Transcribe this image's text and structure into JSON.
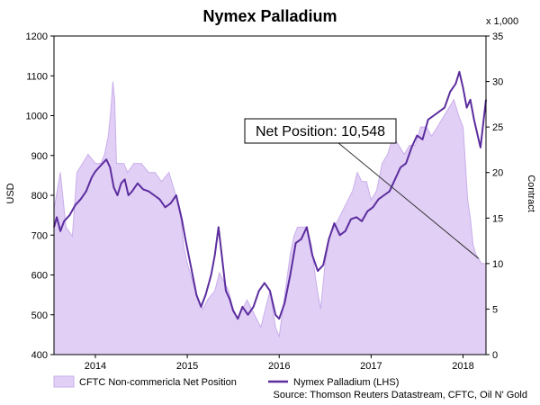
{
  "chart_data": {
    "type": "area",
    "title": "Nymex Palladium",
    "ylabel": "USD",
    "y2label": "Contract",
    "y2unit": "x 1,000",
    "ylim": [
      400,
      1200
    ],
    "y2lim": [
      0,
      35
    ],
    "yticks": [
      400,
      500,
      600,
      700,
      800,
      900,
      1000,
      1100,
      1200
    ],
    "y2ticks": [
      0,
      5,
      10,
      15,
      20,
      25,
      30,
      35
    ],
    "xlim": [
      2013.55,
      2018.25
    ],
    "xticks": [
      {
        "label": "2014",
        "value": 2014.0
      },
      {
        "label": "2015",
        "value": 2015.0
      },
      {
        "label": "2016",
        "value": 2016.0
      },
      {
        "label": "2017",
        "value": 2017.0
      },
      {
        "label": "2018",
        "value": 2018.0
      }
    ],
    "grid": false,
    "legend_position": "bottom",
    "series": [
      {
        "name": "CFTC Non-commericla Net Position",
        "axis": "right",
        "kind": "area",
        "points": [
          [
            2013.55,
            16
          ],
          [
            2013.62,
            20
          ],
          [
            2013.68,
            14
          ],
          [
            2013.75,
            13
          ],
          [
            2013.8,
            20
          ],
          [
            2013.86,
            21
          ],
          [
            2013.92,
            22
          ],
          [
            2014.0,
            21
          ],
          [
            2014.06,
            21
          ],
          [
            2014.1,
            22
          ],
          [
            2014.14,
            24
          ],
          [
            2014.17,
            27
          ],
          [
            2014.19,
            30
          ],
          [
            2014.21,
            28
          ],
          [
            2014.23,
            21
          ],
          [
            2014.27,
            21
          ],
          [
            2014.31,
            21
          ],
          [
            2014.35,
            20
          ],
          [
            2014.42,
            21
          ],
          [
            2014.5,
            21
          ],
          [
            2014.58,
            20
          ],
          [
            2014.65,
            20
          ],
          [
            2014.72,
            19
          ],
          [
            2014.8,
            20
          ],
          [
            2014.86,
            18
          ],
          [
            2014.92,
            16
          ],
          [
            2014.96,
            12
          ],
          [
            2015.0,
            10
          ],
          [
            2015.06,
            8
          ],
          [
            2015.12,
            6
          ],
          [
            2015.17,
            5
          ],
          [
            2015.22,
            6
          ],
          [
            2015.3,
            7
          ],
          [
            2015.35,
            9
          ],
          [
            2015.4,
            8
          ],
          [
            2015.45,
            7
          ],
          [
            2015.5,
            5
          ],
          [
            2015.55,
            4
          ],
          [
            2015.6,
            5
          ],
          [
            2015.65,
            6
          ],
          [
            2015.7,
            5
          ],
          [
            2015.75,
            4
          ],
          [
            2015.8,
            3
          ],
          [
            2015.85,
            5
          ],
          [
            2015.9,
            7
          ],
          [
            2015.96,
            3
          ],
          [
            2016.0,
            2
          ],
          [
            2016.04,
            5
          ],
          [
            2016.08,
            8
          ],
          [
            2016.12,
            11
          ],
          [
            2016.16,
            13
          ],
          [
            2016.2,
            14
          ],
          [
            2016.25,
            14
          ],
          [
            2016.3,
            14
          ],
          [
            2016.35,
            12
          ],
          [
            2016.4,
            8
          ],
          [
            2016.45,
            5
          ],
          [
            2016.5,
            10
          ],
          [
            2016.55,
            13
          ],
          [
            2016.6,
            14
          ],
          [
            2016.65,
            15
          ],
          [
            2016.7,
            16
          ],
          [
            2016.75,
            17
          ],
          [
            2016.8,
            18
          ],
          [
            2016.85,
            20
          ],
          [
            2016.9,
            19
          ],
          [
            2016.95,
            19
          ],
          [
            2017.0,
            17
          ],
          [
            2017.06,
            18
          ],
          [
            2017.12,
            21
          ],
          [
            2017.18,
            22
          ],
          [
            2017.24,
            24
          ],
          [
            2017.3,
            23
          ],
          [
            2017.36,
            22
          ],
          [
            2017.42,
            23
          ],
          [
            2017.48,
            23
          ],
          [
            2017.54,
            25
          ],
          [
            2017.6,
            25
          ],
          [
            2017.66,
            24
          ],
          [
            2017.72,
            25
          ],
          [
            2017.78,
            26
          ],
          [
            2017.84,
            27
          ],
          [
            2017.9,
            28
          ],
          [
            2017.96,
            26
          ],
          [
            2018.0,
            25
          ],
          [
            2018.02,
            22
          ],
          [
            2018.05,
            17
          ],
          [
            2018.08,
            15
          ],
          [
            2018.11,
            12
          ],
          [
            2018.14,
            11
          ],
          [
            2018.17,
            10.548
          ],
          [
            2018.2,
            10
          ],
          [
            2018.23,
            10
          ],
          [
            2018.25,
            10
          ]
        ]
      },
      {
        "name": "Nymex Palladium (LHS)",
        "axis": "left",
        "kind": "line",
        "points": [
          [
            2013.55,
            720
          ],
          [
            2013.58,
            745
          ],
          [
            2013.62,
            710
          ],
          [
            2013.66,
            735
          ],
          [
            2013.72,
            750
          ],
          [
            2013.78,
            775
          ],
          [
            2013.84,
            790
          ],
          [
            2013.9,
            810
          ],
          [
            2013.96,
            845
          ],
          [
            2014.0,
            860
          ],
          [
            2014.04,
            870
          ],
          [
            2014.08,
            880
          ],
          [
            2014.12,
            890
          ],
          [
            2014.16,
            870
          ],
          [
            2014.2,
            820
          ],
          [
            2014.24,
            800
          ],
          [
            2014.28,
            830
          ],
          [
            2014.32,
            840
          ],
          [
            2014.36,
            800
          ],
          [
            2014.4,
            810
          ],
          [
            2014.46,
            830
          ],
          [
            2014.52,
            815
          ],
          [
            2014.58,
            810
          ],
          [
            2014.64,
            800
          ],
          [
            2014.7,
            790
          ],
          [
            2014.76,
            770
          ],
          [
            2014.82,
            780
          ],
          [
            2014.88,
            800
          ],
          [
            2014.94,
            740
          ],
          [
            2014.98,
            690
          ],
          [
            2015.04,
            620
          ],
          [
            2015.1,
            550
          ],
          [
            2015.15,
            520
          ],
          [
            2015.2,
            550
          ],
          [
            2015.26,
            600
          ],
          [
            2015.3,
            650
          ],
          [
            2015.34,
            720
          ],
          [
            2015.38,
            640
          ],
          [
            2015.42,
            560
          ],
          [
            2015.46,
            540
          ],
          [
            2015.5,
            510
          ],
          [
            2015.55,
            490
          ],
          [
            2015.6,
            520
          ],
          [
            2015.66,
            500
          ],
          [
            2015.72,
            520
          ],
          [
            2015.78,
            560
          ],
          [
            2015.84,
            580
          ],
          [
            2015.9,
            560
          ],
          [
            2015.96,
            500
          ],
          [
            2016.0,
            490
          ],
          [
            2016.06,
            530
          ],
          [
            2016.12,
            600
          ],
          [
            2016.18,
            680
          ],
          [
            2016.24,
            690
          ],
          [
            2016.3,
            720
          ],
          [
            2016.36,
            650
          ],
          [
            2016.42,
            610
          ],
          [
            2016.48,
            625
          ],
          [
            2016.54,
            690
          ],
          [
            2016.6,
            730
          ],
          [
            2016.66,
            700
          ],
          [
            2016.72,
            710
          ],
          [
            2016.78,
            740
          ],
          [
            2016.84,
            745
          ],
          [
            2016.9,
            735
          ],
          [
            2016.96,
            760
          ],
          [
            2017.02,
            770
          ],
          [
            2017.08,
            790
          ],
          [
            2017.14,
            800
          ],
          [
            2017.2,
            810
          ],
          [
            2017.26,
            840
          ],
          [
            2017.32,
            870
          ],
          [
            2017.38,
            880
          ],
          [
            2017.44,
            920
          ],
          [
            2017.5,
            950
          ],
          [
            2017.56,
            940
          ],
          [
            2017.62,
            990
          ],
          [
            2017.68,
            1000
          ],
          [
            2017.74,
            1010
          ],
          [
            2017.8,
            1020
          ],
          [
            2017.86,
            1060
          ],
          [
            2017.92,
            1080
          ],
          [
            2017.96,
            1110
          ],
          [
            2018.0,
            1070
          ],
          [
            2018.04,
            1020
          ],
          [
            2018.08,
            1040
          ],
          [
            2018.12,
            990
          ],
          [
            2018.16,
            950
          ],
          [
            2018.19,
            920
          ],
          [
            2018.22,
            980
          ],
          [
            2018.25,
            1040
          ]
        ]
      }
    ],
    "annotation": {
      "text": "Net Position: 10,548",
      "target_x": 2018.17,
      "target_value": 10.548,
      "target_axis": "right"
    },
    "source": "Source: Thomson Reuters Datastream, CFTC, Oil N' Gold"
  },
  "colors": {
    "area_fill": "#e1cff5",
    "area_stroke": "#c9aeeb",
    "line": "#5b2d9e",
    "callout_line": "#333333",
    "axis": "#000000"
  }
}
